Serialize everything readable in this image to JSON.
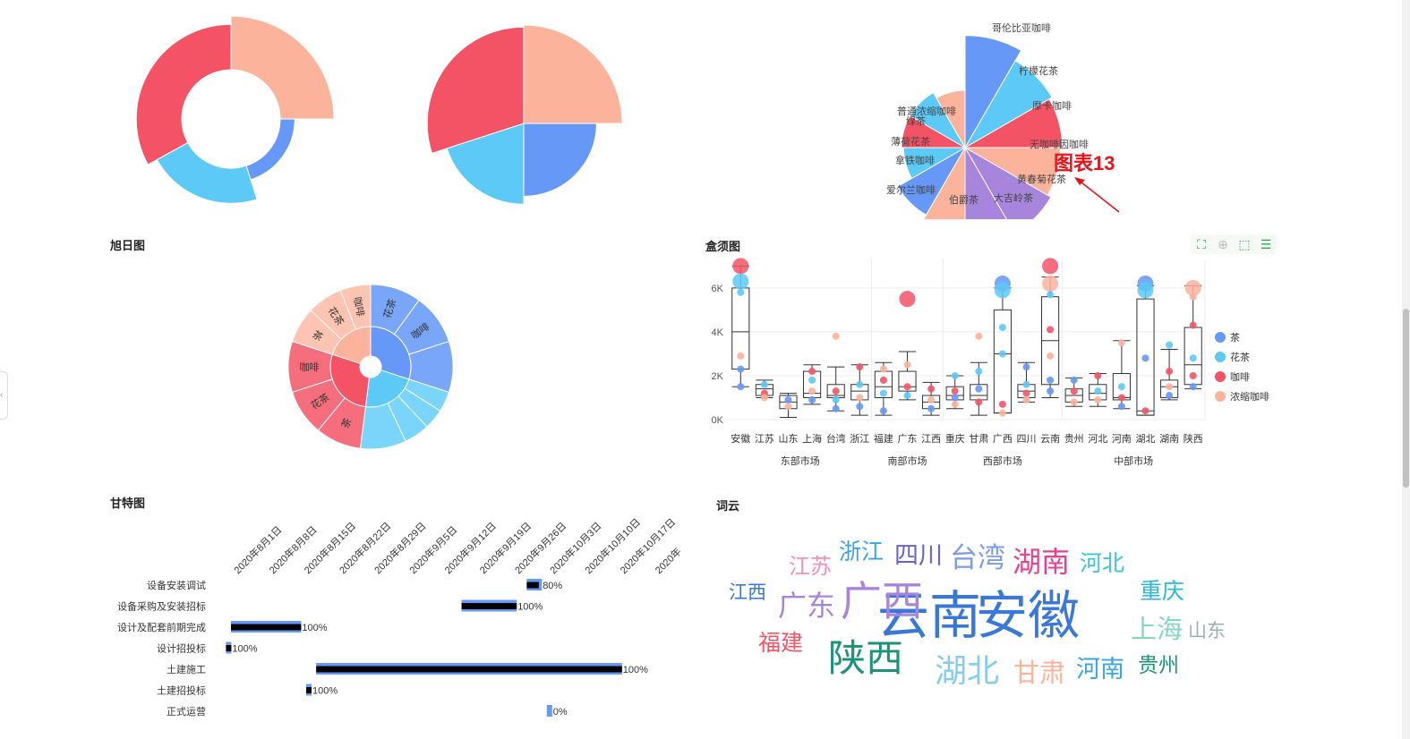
{
  "titles": {
    "sunburst": "旭日图",
    "boxplot": "盒须图",
    "gantt": "甘特图",
    "wordcloud": "词云"
  },
  "annotation": {
    "label": "图表13",
    "color": "#e8131a"
  },
  "colors": {
    "blue": "#6598f7",
    "cyan": "#5cc9f7",
    "red": "#f45366",
    "salmon": "#fcb39c",
    "purple": "#a785dc"
  },
  "toolbar": {
    "icons": [
      "fullscreen-icon",
      "zoom-icon",
      "select-icon",
      "list-icon"
    ]
  },
  "chart_data": [
    {
      "type": "pie",
      "variant": "rose-donut",
      "slices": [
        {
          "value": 25,
          "radius": 1.0,
          "color": "#fcb39c"
        },
        {
          "value": 20,
          "radius": 0.62,
          "color": "#6598f7"
        },
        {
          "value": 22,
          "radius": 0.82,
          "color": "#5cc9f7"
        },
        {
          "value": 33,
          "radius": 0.92,
          "color": "#f45366"
        }
      ]
    },
    {
      "type": "pie",
      "variant": "rose",
      "slices": [
        {
          "value": 25,
          "radius": 1.0,
          "color": "#fcb39c"
        },
        {
          "value": 25,
          "radius": 0.74,
          "color": "#6598f7"
        },
        {
          "value": 20,
          "radius": 0.82,
          "color": "#5cc9f7"
        },
        {
          "value": 30,
          "radius": 0.98,
          "color": "#f45366"
        }
      ]
    },
    {
      "type": "pie",
      "variant": "nightingale",
      "slices": [
        {
          "name": "哥伦比亚咖啡",
          "value": 100,
          "color": "#6598f7"
        },
        {
          "name": "柠檬花茶",
          "value": 80,
          "color": "#5cc9f7"
        },
        {
          "name": "摩卡咖啡",
          "value": 75,
          "color": "#f45366"
        },
        {
          "name": "无咖啡因咖啡",
          "value": 72,
          "color": "#fcb39c"
        },
        {
          "name": "黄春菊花茶",
          "value": 78,
          "color": "#a785dc"
        },
        {
          "name": "大吉岭茶",
          "value": 72,
          "color": "#a785dc"
        },
        {
          "name": "伯爵茶",
          "value": 58,
          "color": "#fcb39c"
        },
        {
          "name": "爱尔兰咖啡",
          "value": 48,
          "color": "#6598f7"
        },
        {
          "name": "拿铁咖啡",
          "value": 30,
          "color": "#5cc9f7"
        },
        {
          "name": "薄荷花茶",
          "value": 32,
          "color": "#f45366"
        },
        {
          "name": "绿茶",
          "value": 32,
          "color": "#5cc9f7"
        },
        {
          "name": "普通浓缩咖啡",
          "value": 26,
          "color": "#fcb39c"
        }
      ]
    },
    {
      "type": "sunburst",
      "inner": [
        {
          "value": 30,
          "color": "#6598f7"
        },
        {
          "value": 22,
          "color": "#5cc9f7"
        },
        {
          "value": 28,
          "color": "#f45366"
        },
        {
          "value": 20,
          "color": "#fcb39c"
        }
      ],
      "outer": [
        {
          "label": "花茶",
          "value": 10,
          "color": "#6598f7",
          "parent": 0
        },
        {
          "label": "咖啡",
          "value": 10,
          "color": "#6598f7",
          "parent": 0
        },
        {
          "label": "",
          "value": 10,
          "color": "#6598f7",
          "parent": 0
        },
        {
          "label": "",
          "value": 4,
          "color": "#5cc9f7",
          "parent": 1
        },
        {
          "label": "",
          "value": 4,
          "color": "#5cc9f7",
          "parent": 1
        },
        {
          "label": "",
          "value": 5,
          "color": "#5cc9f7",
          "parent": 1
        },
        {
          "label": "",
          "value": 9,
          "color": "#5cc9f7",
          "parent": 1
        },
        {
          "label": "茶",
          "value": 9,
          "color": "#f45366",
          "parent": 2
        },
        {
          "label": "花茶",
          "value": 9,
          "color": "#f45366",
          "parent": 2
        },
        {
          "label": "咖啡",
          "value": 10,
          "color": "#f45366",
          "parent": 2
        },
        {
          "label": "茶",
          "value": 7,
          "color": "#fcb39c",
          "parent": 3
        },
        {
          "label": "花茶",
          "value": 7,
          "color": "#fcb39c",
          "parent": 3
        },
        {
          "label": "咖啡",
          "value": 6,
          "color": "#fcb39c",
          "parent": 3
        }
      ]
    },
    {
      "type": "boxplot",
      "categories": [
        "安徽",
        "江苏",
        "山东",
        "上海",
        "台湾",
        "浙江",
        "福建",
        "广东",
        "江西",
        "重庆",
        "甘肃",
        "广西",
        "四川",
        "云南",
        "贵州",
        "河北",
        "河南",
        "湖北",
        "湖南",
        "陕西"
      ],
      "groups": [
        {
          "label": "东部市场",
          "from": 0,
          "to": 5
        },
        {
          "label": "南部市场",
          "from": 6,
          "to": 8
        },
        {
          "label": "西部市场",
          "from": 9,
          "to": 13
        },
        {
          "label": "中部市场",
          "from": 14,
          "to": 19
        }
      ],
      "boxes": [
        [
          1500,
          2300,
          4000,
          6000,
          7000
        ],
        [
          1000,
          1100,
          1400,
          1600,
          1800
        ],
        [
          100,
          500,
          800,
          1100,
          1200
        ],
        [
          700,
          1000,
          1200,
          2200,
          2500
        ],
        [
          400,
          1000,
          1100,
          1600,
          2400
        ],
        [
          200,
          900,
          1300,
          1600,
          2500
        ],
        [
          200,
          1000,
          1500,
          2200,
          2600
        ],
        [
          900,
          1300,
          1500,
          2200,
          3100
        ],
        [
          200,
          500,
          800,
          1100,
          1700
        ],
        [
          500,
          900,
          1100,
          1500,
          2000
        ],
        [
          200,
          900,
          1100,
          1600,
          2600
        ],
        [
          300,
          300,
          3000,
          5000,
          6000
        ],
        [
          800,
          1000,
          1300,
          1600,
          2600
        ],
        [
          1000,
          1600,
          3600,
          5600,
          6500
        ],
        [
          600,
          800,
          1100,
          1400,
          1900
        ],
        [
          600,
          900,
          1200,
          1600,
          2100
        ],
        [
          500,
          900,
          1000,
          2100,
          3600
        ],
        [
          200,
          200,
          400,
          5500,
          6100
        ],
        [
          900,
          1000,
          1500,
          1800,
          3200
        ],
        [
          1400,
          1600,
          2500,
          4200,
          6100
        ]
      ],
      "points": [
        {
          "cat": 0,
          "series": 2,
          "v": 7000,
          "big": true
        },
        {
          "cat": 0,
          "series": 1,
          "v": 6300,
          "big": true
        },
        {
          "cat": 0,
          "series": 1,
          "v": 5800
        },
        {
          "cat": 0,
          "series": 3,
          "v": 2900
        },
        {
          "cat": 0,
          "series": 0,
          "v": 2300
        },
        {
          "cat": 0,
          "series": 0,
          "v": 1500
        },
        {
          "cat": 1,
          "series": 1,
          "v": 1600
        },
        {
          "cat": 1,
          "series": 2,
          "v": 1200
        },
        {
          "cat": 1,
          "series": 3,
          "v": 1000
        },
        {
          "cat": 2,
          "series": 0,
          "v": 900
        },
        {
          "cat": 2,
          "series": 3,
          "v": 600
        },
        {
          "cat": 3,
          "series": 2,
          "v": 2200
        },
        {
          "cat": 3,
          "series": 1,
          "v": 1800
        },
        {
          "cat": 3,
          "series": 3,
          "v": 1300
        },
        {
          "cat": 3,
          "series": 0,
          "v": 900
        },
        {
          "cat": 4,
          "series": 3,
          "v": 3800
        },
        {
          "cat": 4,
          "series": 2,
          "v": 1300
        },
        {
          "cat": 4,
          "series": 1,
          "v": 900
        },
        {
          "cat": 4,
          "series": 0,
          "v": 500
        },
        {
          "cat": 5,
          "series": 2,
          "v": 2400
        },
        {
          "cat": 5,
          "series": 1,
          "v": 1600
        },
        {
          "cat": 5,
          "series": 3,
          "v": 1000
        },
        {
          "cat": 5,
          "series": 0,
          "v": 600
        },
        {
          "cat": 6,
          "series": 3,
          "v": 2300
        },
        {
          "cat": 6,
          "series": 2,
          "v": 1800
        },
        {
          "cat": 6,
          "series": 1,
          "v": 1200
        },
        {
          "cat": 6,
          "series": 0,
          "v": 400
        },
        {
          "cat": 7,
          "series": 2,
          "v": 5500,
          "big": true
        },
        {
          "cat": 7,
          "series": 3,
          "v": 2500
        },
        {
          "cat": 7,
          "series": 2,
          "v": 1500
        },
        {
          "cat": 7,
          "series": 1,
          "v": 1100
        },
        {
          "cat": 8,
          "series": 2,
          "v": 1400
        },
        {
          "cat": 8,
          "series": 3,
          "v": 900
        },
        {
          "cat": 8,
          "series": 0,
          "v": 500
        },
        {
          "cat": 9,
          "series": 1,
          "v": 2000
        },
        {
          "cat": 9,
          "series": 2,
          "v": 1300
        },
        {
          "cat": 9,
          "series": 0,
          "v": 1000
        },
        {
          "cat": 9,
          "series": 3,
          "v": 700
        },
        {
          "cat": 10,
          "series": 3,
          "v": 3800
        },
        {
          "cat": 10,
          "series": 1,
          "v": 2200
        },
        {
          "cat": 10,
          "series": 0,
          "v": 1400
        },
        {
          "cat": 10,
          "series": 2,
          "v": 800
        },
        {
          "cat": 11,
          "series": 0,
          "v": 6200,
          "big": true
        },
        {
          "cat": 11,
          "series": 1,
          "v": 5900,
          "big": true
        },
        {
          "cat": 11,
          "series": 1,
          "v": 4200
        },
        {
          "cat": 11,
          "series": 1,
          "v": 3000
        },
        {
          "cat": 11,
          "series": 2,
          "v": 700
        },
        {
          "cat": 11,
          "series": 3,
          "v": 300
        },
        {
          "cat": 12,
          "series": 0,
          "v": 2400
        },
        {
          "cat": 12,
          "series": 1,
          "v": 1600
        },
        {
          "cat": 12,
          "series": 2,
          "v": 1200
        },
        {
          "cat": 12,
          "series": 3,
          "v": 900
        },
        {
          "cat": 13,
          "series": 2,
          "v": 7000,
          "big": true
        },
        {
          "cat": 13,
          "series": 3,
          "v": 6200,
          "big": true
        },
        {
          "cat": 13,
          "series": 1,
          "v": 5700
        },
        {
          "cat": 13,
          "series": 2,
          "v": 4100
        },
        {
          "cat": 13,
          "series": 3,
          "v": 2900
        },
        {
          "cat": 13,
          "series": 0,
          "v": 1800
        },
        {
          "cat": 13,
          "series": 0,
          "v": 1300
        },
        {
          "cat": 14,
          "series": 0,
          "v": 1800
        },
        {
          "cat": 14,
          "series": 2,
          "v": 1300
        },
        {
          "cat": 14,
          "series": 3,
          "v": 800
        },
        {
          "cat": 15,
          "series": 2,
          "v": 2000
        },
        {
          "cat": 15,
          "series": 1,
          "v": 1300
        },
        {
          "cat": 15,
          "series": 3,
          "v": 900
        },
        {
          "cat": 16,
          "series": 3,
          "v": 3500
        },
        {
          "cat": 16,
          "series": 1,
          "v": 1500
        },
        {
          "cat": 16,
          "series": 2,
          "v": 1000
        },
        {
          "cat": 16,
          "series": 0,
          "v": 600
        },
        {
          "cat": 17,
          "series": 0,
          "v": 6200,
          "big": true
        },
        {
          "cat": 17,
          "series": 1,
          "v": 5900,
          "big": true
        },
        {
          "cat": 17,
          "series": 0,
          "v": 2800
        },
        {
          "cat": 17,
          "series": 2,
          "v": 400
        },
        {
          "cat": 18,
          "series": 1,
          "v": 3400
        },
        {
          "cat": 18,
          "series": 2,
          "v": 2200
        },
        {
          "cat": 18,
          "series": 3,
          "v": 1500
        },
        {
          "cat": 18,
          "series": 0,
          "v": 1100
        },
        {
          "cat": 19,
          "series": 3,
          "v": 6000,
          "big": true
        },
        {
          "cat": 19,
          "series": 3,
          "v": 5600
        },
        {
          "cat": 19,
          "series": 2,
          "v": 4300
        },
        {
          "cat": 19,
          "series": 1,
          "v": 2800
        },
        {
          "cat": 19,
          "series": 2,
          "v": 2000
        },
        {
          "cat": 19,
          "series": 0,
          "v": 1500
        }
      ],
      "yticks": [
        "0K",
        "2K",
        "4K",
        "6K"
      ],
      "ylim": [
        0,
        7300
      ],
      "legend": {
        "position": "right",
        "entries": [
          "茶",
          "花茶",
          "咖啡",
          "浓缩咖啡"
        ]
      },
      "series_colors": [
        "#6598f7",
        "#5cc9f7",
        "#f45366",
        "#fcb39c"
      ]
    },
    {
      "type": "gantt",
      "date_ticks": [
        "2020年8月1日",
        "2020年8月8日",
        "2020年8月15日",
        "2020年8月22日",
        "2020年8月29日",
        "2020年9月5日",
        "2020年9月12日",
        "2020年9月19日",
        "2020年9月26日",
        "2020年10月3日",
        "2020年10月10日",
        "2020年10月17日",
        "2020年"
      ],
      "tasks": [
        {
          "name": "设备安装调试",
          "start": "2020-09-28",
          "end": "2020-10-01",
          "progress": "80%"
        },
        {
          "name": "设备采购及安装招标",
          "start": "2020-09-15",
          "end": "2020-09-26",
          "progress": "100%"
        },
        {
          "name": "设计及配套前期完成",
          "start": "2020-07-31",
          "end": "2020-08-14",
          "progress": "100%"
        },
        {
          "name": "设计招投标",
          "start": "2020-07-30",
          "end": "2020-07-31",
          "progress": "100%"
        },
        {
          "name": "土建施工",
          "start": "2020-08-17",
          "end": "2020-10-17",
          "progress": "100%"
        },
        {
          "name": "土建招投标",
          "start": "2020-08-15",
          "end": "2020-08-16",
          "progress": "100%"
        },
        {
          "name": "正式运营",
          "start": "2020-10-02",
          "end": "2020-10-03",
          "progress": "0%"
        }
      ]
    },
    {
      "type": "wordcloud",
      "words": [
        {
          "text": "云南",
          "size": 58,
          "color": "#3a78d8"
        },
        {
          "text": "安徽",
          "size": 58,
          "color": "#3a78d8"
        },
        {
          "text": "广西",
          "size": 46,
          "color": "#a785dc"
        },
        {
          "text": "陕西",
          "size": 42,
          "color": "#1a9377"
        },
        {
          "text": "湖北",
          "size": 36,
          "color": "#85ccf0"
        },
        {
          "text": "湖南",
          "size": 32,
          "color": "#e8408e"
        },
        {
          "text": "台湾",
          "size": 31,
          "color": "#7c9bea"
        },
        {
          "text": "广东",
          "size": 32,
          "color": "#a785dc"
        },
        {
          "text": "上海",
          "size": 29,
          "color": "#86d6c4"
        },
        {
          "text": "甘肃",
          "size": 29,
          "color": "#fcb39c"
        },
        {
          "text": "四川",
          "size": 27,
          "color": "#6a5fd4"
        },
        {
          "text": "河南",
          "size": 27,
          "color": "#3aa3e3"
        },
        {
          "text": "浙江",
          "size": 25,
          "color": "#3aa3e3"
        },
        {
          "text": "重庆",
          "size": 25,
          "color": "#2ab8d8"
        },
        {
          "text": "河北",
          "size": 25,
          "color": "#3cc6d9"
        },
        {
          "text": "福建",
          "size": 25,
          "color": "#f45366"
        },
        {
          "text": "江苏",
          "size": 24,
          "color": "#f590b4"
        },
        {
          "text": "贵州",
          "size": 23,
          "color": "#1a9377"
        },
        {
          "text": "江西",
          "size": 21,
          "color": "#3a78d8"
        },
        {
          "text": "山东",
          "size": 21,
          "color": "#9ab0b8"
        }
      ]
    }
  ]
}
